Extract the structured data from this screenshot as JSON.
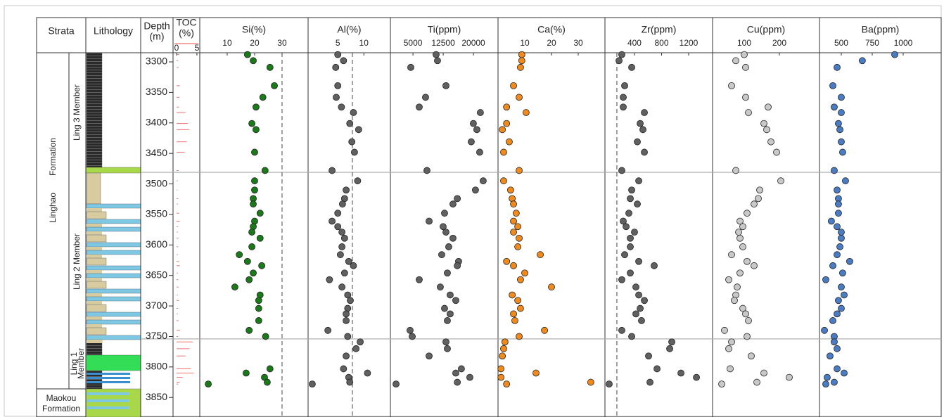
{
  "chart_data": {
    "type": "depth-profile",
    "columns": {
      "strata": "Strata",
      "lithology": "Lithology",
      "depth": [
        "Depth",
        "(m)"
      ]
    },
    "strata": {
      "formation": [
        "Linghao",
        "Formation"
      ],
      "members": [
        "Ling 3 Member",
        "Ling 2 Member"
      ],
      "lower_member": [
        "Ling 1",
        "Member"
      ],
      "lower_formation": [
        "Maokou",
        "Formation"
      ]
    },
    "ylim": [
      3285,
      3882
    ],
    "yticks": [
      3300,
      3350,
      3400,
      3450,
      3500,
      3550,
      3600,
      3650,
      3700,
      3750,
      3800,
      3850
    ],
    "boundaries": [
      3481,
      3754
    ],
    "depths": [
      3288,
      3298,
      3309,
      3339,
      3358,
      3374,
      3383,
      3401,
      3411,
      3431,
      3448,
      3478,
      3495,
      3510,
      3524,
      3533,
      3548,
      3561,
      3570,
      3579,
      3589,
      3603,
      3616,
      3627,
      3634,
      3646,
      3657,
      3669,
      3682,
      3691,
      3704,
      3713,
      3724,
      3740,
      3750,
      3759,
      3770,
      3782,
      3803,
      3810,
      3817,
      3825,
      3828
    ],
    "panels": [
      {
        "type": "bar",
        "title": [
          "TOC",
          "(%)"
        ],
        "color": "#f07070",
        "xlim": [
          -0.86,
          5.7
        ],
        "xticks": [
          0,
          5
        ],
        "values": [
          0.6,
          0.4,
          0.5,
          0.8,
          0.7,
          0.6,
          2.2,
          2.8,
          3.1,
          2.5,
          2.0,
          0.5,
          0.3,
          0.2,
          0.4,
          0.3,
          0.6,
          0.8,
          0.4,
          0.3,
          0.5,
          0.4,
          0.3,
          0.6,
          0.8,
          0.3,
          0.4,
          0.5,
          0.3,
          0.6,
          0.4,
          0.3,
          0.5,
          0.9,
          0.4,
          4.0,
          3.2,
          2.2,
          3.5,
          4.2,
          1.5,
          0.8,
          0.4
        ]
      },
      {
        "type": "scatter",
        "title": "Si(%)",
        "color": "#1a7a1a",
        "xlim": [
          0,
          39.5
        ],
        "xticks": [
          10,
          20,
          30
        ],
        "reference": 30,
        "values": [
          17.4,
          19.5,
          25.6,
          27.2,
          23,
          20.5,
          null,
          19,
          20.5,
          null,
          20,
          23.8,
          20,
          20,
          19.5,
          19.5,
          22,
          20,
          19.5,
          19,
          22,
          19,
          14.4,
          17.4,
          22.6,
          19.5,
          18,
          12.8,
          22,
          21.5,
          21.5,
          null,
          21.5,
          18,
          24,
          null,
          null,
          null,
          25.6,
          16.9,
          23.6,
          24.6,
          3.1
        ]
      },
      {
        "type": "scatter",
        "title": "Al(%)",
        "color": "#606060",
        "xlim": [
          -0.7,
          15.1
        ],
        "xticks": [
          5,
          10
        ],
        "reference": 7.8,
        "values": [
          5,
          6.1,
          4.6,
          5,
          4.7,
          5.7,
          8,
          7.3,
          9,
          7.7,
          8.2,
          3.9,
          8.8,
          6.6,
          6.3,
          5.9,
          5,
          3.9,
          5,
          5.8,
          6.3,
          5.8,
          5.5,
          7.1,
          8,
          6.3,
          3.4,
          5.8,
          6.9,
          7.4,
          6.9,
          6.6,
          6.6,
          3.1,
          6.9,
          9.3,
          8.5,
          6.6,
          6.1,
          10.7,
          7.1,
          7.3,
          0.1
        ]
      },
      {
        "type": "scatter",
        "title": "Ti(ppm)",
        "color": "#606060",
        "xlim": [
          -600,
          26100
        ],
        "xticks": [
          5000,
          12500,
          20000
        ],
        "values": [
          10735,
          11085,
          4457,
          13180,
          8120,
          6550,
          21720,
          19980,
          20850,
          19460,
          21550,
          8470,
          22420,
          20500,
          16000,
          14920,
          12830,
          9000,
          12480,
          13180,
          14920,
          13870,
          12130,
          16320,
          16000,
          13530,
          6550,
          11780,
          14220,
          15620,
          12830,
          14220,
          13530,
          4280,
          4810,
          13180,
          13530,
          9000,
          17010,
          15620,
          19110,
          16000,
          800
        ]
      },
      {
        "type": "scatter",
        "title": "Ca(%)",
        "color": "#f08a1c",
        "xlim": [
          0,
          40
        ],
        "xticks": [
          10,
          20,
          30
        ],
        "values": [
          8.9,
          8.9,
          8.4,
          5.8,
          7.9,
          3.2,
          10.5,
          3.2,
          1.6,
          4.2,
          2.1,
          7.9,
          2.1,
          4.7,
          5.3,
          5.8,
          6.8,
          5.8,
          7.4,
          5.8,
          7.9,
          7.4,
          15.8,
          3.2,
          5.8,
          10,
          8.4,
          20,
          5.3,
          7.4,
          8.4,
          5.8,
          6.3,
          17.4,
          7.9,
          2.6,
          2.1,
          1.6,
          1.1,
          14.2,
          1.1,
          34.7,
          3.2
        ]
      },
      {
        "type": "scatter",
        "title": "Zr(ppm)",
        "color": "#606060",
        "xlim": [
          -36,
          1553
        ],
        "xticks": [
          400,
          800,
          1200
        ],
        "reference": 140,
        "values": [
          213,
          172,
          359,
          255,
          234,
          234,
          546,
          484,
          525,
          442,
          546,
          213,
          463,
          359,
          338,
          442,
          317,
          234,
          276,
          400,
          338,
          338,
          255,
          463,
          691,
          338,
          213,
          421,
          463,
          546,
          484,
          421,
          504,
          213,
          359,
          951,
          920,
          608,
          733,
          1086,
          1315,
          629,
          26
        ]
      },
      {
        "type": "scatter",
        "title": "Cu(ppm)",
        "color": "#c8c8c8",
        "xlim": [
          10,
          314
        ],
        "xticks": [
          100,
          200
        ],
        "values": [
          100,
          76,
          104,
          64,
          104,
          168,
          112,
          156,
          164,
          176,
          192,
          76,
          204,
          144,
          140,
          128,
          108,
          88,
          96,
          84,
          88,
          96,
          64,
          108,
          128,
          88,
          56,
          80,
          76,
          72,
          96,
          104,
          112,
          44,
          108,
          64,
          56,
          120,
          60,
          156,
          228,
          136,
          36
        ]
      },
      {
        "type": "scatter",
        "title": "Ba(ppm)",
        "color": "#4a7cc4",
        "xlim": [
          324,
          1307
        ],
        "xticks": [
          500,
          750,
          1000
        ],
        "values": [
          932,
          670,
          466,
          432,
          500,
          443,
          500,
          477,
          489,
          500,
          511,
          443,
          534,
          466,
          477,
          477,
          477,
          420,
          466,
          500,
          500,
          489,
          466,
          568,
          432,
          511,
          375,
          500,
          523,
          477,
          500,
          466,
          432,
          364,
          443,
          443,
          466,
          409,
          466,
          523,
          386,
          443,
          375
        ]
      }
    ]
  }
}
